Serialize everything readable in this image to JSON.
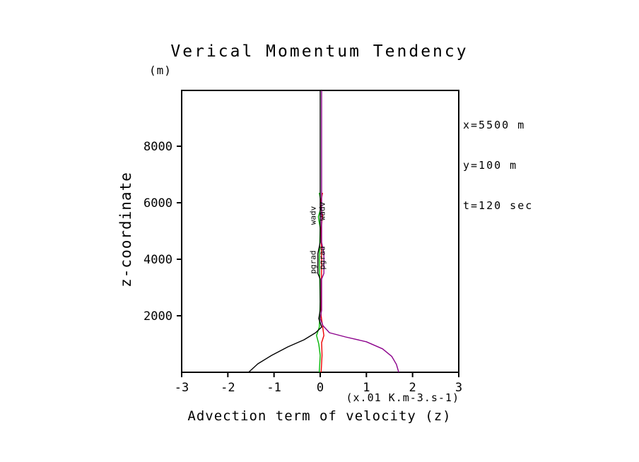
{
  "chart_data": {
    "type": "line",
    "title": "Verical Momentum Tendency",
    "ylabel": "z-coordinate",
    "y_unit": "(m)",
    "xlabel": "Advection term of velocity (z)",
    "x_unit": "(x.01 K.m-3.s-1)",
    "annotations": [
      "x=5500 m",
      "y=100 m",
      "t=120 sec"
    ],
    "xlim": [
      -3,
      3
    ],
    "ylim": [
      0,
      9975
    ],
    "xticks": [
      -3,
      -2,
      -1,
      0,
      1,
      2,
      3
    ],
    "yticks": [
      2000,
      4000,
      6000,
      8000
    ],
    "grid": false,
    "legend": "none",
    "series": [
      {
        "name": "green",
        "color": "#00B400",
        "points": [
          [
            -0.02,
            6350
          ],
          [
            0.03,
            5900
          ],
          [
            -0.04,
            5500
          ],
          [
            0,
            5100
          ],
          [
            -0.02,
            4000
          ],
          [
            0,
            2500
          ],
          [
            -0.02,
            1600
          ],
          [
            -0.08,
            1300
          ],
          [
            -0.03,
            1000
          ],
          [
            0,
            600
          ],
          [
            -0.02,
            0
          ]
        ]
      },
      {
        "name": "red",
        "color": "#EE0000",
        "points": [
          [
            0.05,
            6350
          ],
          [
            0.0,
            5950
          ],
          [
            0.05,
            5550
          ],
          [
            0.02,
            5100
          ],
          [
            0.03,
            4000
          ],
          [
            0.02,
            2000
          ],
          [
            0.08,
            1300
          ],
          [
            0.03,
            1050
          ],
          [
            0.04,
            600
          ],
          [
            0.02,
            0
          ]
        ]
      },
      {
        "name": "purple",
        "color": "#8B008B",
        "points": [
          [
            0.03,
            9975
          ],
          [
            0.03,
            4600
          ],
          [
            0.08,
            4200
          ],
          [
            0.08,
            3500
          ],
          [
            0.03,
            3300
          ],
          [
            0.03,
            2200
          ],
          [
            0.0,
            1900
          ],
          [
            0.06,
            1650
          ],
          [
            0.2,
            1400
          ],
          [
            0.55,
            1250
          ],
          [
            1.0,
            1080
          ],
          [
            1.35,
            830
          ],
          [
            1.55,
            560
          ],
          [
            1.65,
            280
          ],
          [
            1.7,
            0
          ]
        ]
      },
      {
        "name": "black",
        "color": "#000000",
        "points": [
          [
            0,
            9975
          ],
          [
            0,
            4600
          ],
          [
            -0.05,
            4200
          ],
          [
            -0.05,
            3500
          ],
          [
            0,
            3300
          ],
          [
            0,
            2200
          ],
          [
            -0.03,
            1900
          ],
          [
            0.03,
            1600
          ],
          [
            -0.1,
            1400
          ],
          [
            -0.35,
            1150
          ],
          [
            -0.7,
            900
          ],
          [
            -1.05,
            600
          ],
          [
            -1.35,
            300
          ],
          [
            -1.55,
            0
          ]
        ]
      }
    ],
    "curve_labels": [
      {
        "text": "wadv",
        "color": "#00B400",
        "x": -0.1,
        "z": 5550
      },
      {
        "text": "wadv",
        "color": "#EE0000",
        "x": 0.1,
        "z": 5700
      },
      {
        "text": "pgrad",
        "color": "#000000",
        "x": -0.1,
        "z": 3900
      },
      {
        "text": "pgrad",
        "color": "#8B008B",
        "x": 0.1,
        "z": 4050
      }
    ]
  }
}
